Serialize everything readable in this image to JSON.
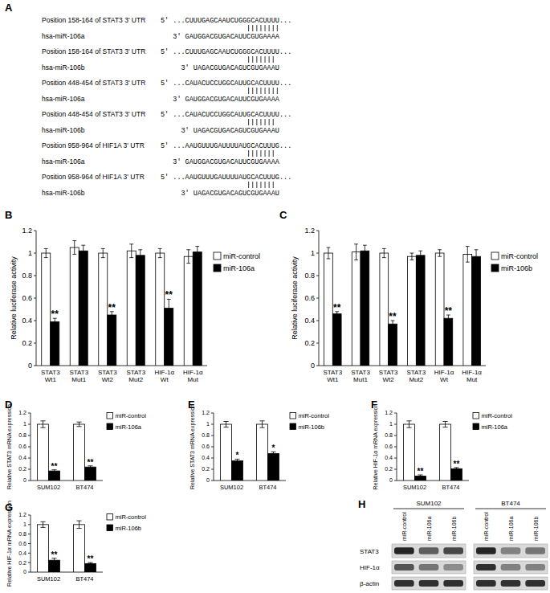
{
  "chart_data": [
    {
      "type": "bar",
      "title": "B",
      "y_label": "Relative luciferase activity",
      "categories": [
        "STAT3 Wt1",
        "STAT3 Mut1",
        "STAT3 Wt2",
        "STAT3 Mut2",
        "HIF-1α Wt",
        "HIF-1α Mut"
      ],
      "series": [
        {
          "name": "miR-control",
          "color": "#ffffff",
          "values": [
            1,
            1.05,
            1,
            1.02,
            1,
            0.97
          ],
          "errors": [
            0.04,
            0.06,
            0.04,
            0.06,
            0.04,
            0.06
          ]
        },
        {
          "name": "miR-106a",
          "color": "#000000",
          "values": [
            0.39,
            1.02,
            0.45,
            0.98,
            0.51,
            1.01
          ],
          "errors": [
            0.03,
            0.05,
            0.03,
            0.05,
            0.08,
            0.05
          ]
        }
      ],
      "annotations": [
        {
          "text": "**",
          "category": "STAT3 Wt1",
          "series": "miR-106a"
        },
        {
          "text": "**",
          "category": "STAT3 Wt2",
          "series": "miR-106a"
        },
        {
          "text": "**",
          "category": "HIF-1α Wt",
          "series": "miR-106a"
        }
      ],
      "ylim": [
        0,
        1.2
      ],
      "yticks": [
        0,
        0.2,
        0.4,
        0.6,
        0.8,
        1,
        1.2
      ],
      "legend": "right",
      "grid": false
    },
    {
      "type": "bar",
      "title": "C",
      "y_label": "Relative luciferase activity",
      "categories": [
        "STAT3 Wt1",
        "STAT3 Mut1",
        "STAT3 Wt2",
        "STAT3 Mut2",
        "HIF-1α Wt",
        "HIF-1α Mut"
      ],
      "series": [
        {
          "name": "miR-control",
          "color": "#ffffff",
          "values": [
            1,
            1.01,
            1,
            0.97,
            1,
            0.99
          ],
          "errors": [
            0.05,
            0.07,
            0.04,
            0.03,
            0.03,
            0.07
          ]
        },
        {
          "name": "miR-106b",
          "color": "#000000",
          "values": [
            0.46,
            1.02,
            0.37,
            0.98,
            0.42,
            0.97
          ],
          "errors": [
            0.02,
            0.05,
            0.03,
            0.04,
            0.03,
            0.06
          ]
        }
      ],
      "annotations": [
        {
          "text": "**",
          "category": "STAT3 Wt1",
          "series": "miR-106b"
        },
        {
          "text": "**",
          "category": "STAT3 Wt2",
          "series": "miR-106b"
        },
        {
          "text": "**",
          "category": "HIF-1α Wt",
          "series": "miR-106b"
        }
      ],
      "ylim": [
        0,
        1.2
      ],
      "yticks": [
        0,
        0.2,
        0.4,
        0.6,
        0.8,
        1,
        1.2
      ],
      "legend": "right",
      "grid": false
    },
    {
      "type": "bar",
      "title": "D",
      "y_label": "Relative STAT3 mRNA expression",
      "categories": [
        "SUM102",
        "BT474"
      ],
      "series": [
        {
          "name": "miR-control",
          "color": "#ffffff",
          "values": [
            1,
            1
          ],
          "errors": [
            0.06,
            0.04
          ]
        },
        {
          "name": "miR-106a",
          "color": "#000000",
          "values": [
            0.17,
            0.24
          ],
          "errors": [
            0.02,
            0.02
          ]
        }
      ],
      "annotations": [
        {
          "text": "**",
          "category": "SUM102",
          "series": "miR-106a"
        },
        {
          "text": "**",
          "category": "BT474",
          "series": "miR-106a"
        }
      ],
      "ylim": [
        0,
        1.2
      ],
      "yticks": [
        0,
        0.2,
        0.4,
        0.6,
        0.8,
        1,
        1.2
      ],
      "legend": "right",
      "grid": false
    },
    {
      "type": "bar",
      "title": "E",
      "y_label": "Relative STAT3 mRNA expression",
      "categories": [
        "SUM102",
        "BT474"
      ],
      "series": [
        {
          "name": "miR-control",
          "color": "#ffffff",
          "values": [
            1,
            1
          ],
          "errors": [
            0.05,
            0.06
          ]
        },
        {
          "name": "miR-106b",
          "color": "#000000",
          "values": [
            0.35,
            0.48
          ],
          "errors": [
            0.03,
            0.03
          ]
        }
      ],
      "annotations": [
        {
          "text": "*",
          "category": "SUM102",
          "series": "miR-106b"
        },
        {
          "text": "*",
          "category": "BT474",
          "series": "miR-106b"
        }
      ],
      "ylim": [
        0,
        1.2
      ],
      "yticks": [
        0,
        0.2,
        0.4,
        0.6,
        0.8,
        1,
        1.2
      ],
      "legend": "right",
      "grid": false
    },
    {
      "type": "bar",
      "title": "F",
      "y_label": "Relative HIF-1α mRNA expression",
      "categories": [
        "SUM102",
        "BT474"
      ],
      "series": [
        {
          "name": "miR-control",
          "color": "#ffffff",
          "values": [
            1,
            1
          ],
          "errors": [
            0.06,
            0.05
          ]
        },
        {
          "name": "miR-106a",
          "color": "#000000",
          "values": [
            0.08,
            0.21
          ],
          "errors": [
            0.02,
            0.02
          ]
        }
      ],
      "annotations": [
        {
          "text": "**",
          "category": "SUM102",
          "series": "miR-106a"
        },
        {
          "text": "**",
          "category": "BT474",
          "series": "miR-106a"
        }
      ],
      "ylim": [
        0,
        1.2
      ],
      "yticks": [
        0,
        0.2,
        0.4,
        0.6,
        0.8,
        1,
        1.2
      ],
      "legend": "right",
      "grid": false
    },
    {
      "type": "bar",
      "title": "G",
      "y_label": "Relative HIF-1α mRNA expression",
      "categories": [
        "SUM102",
        "BT474"
      ],
      "series": [
        {
          "name": "miR-control",
          "color": "#ffffff",
          "values": [
            1,
            1
          ],
          "errors": [
            0.06,
            0.08
          ]
        },
        {
          "name": "miR-106b",
          "color": "#000000",
          "values": [
            0.25,
            0.18
          ],
          "errors": [
            0.04,
            0.02
          ]
        }
      ],
      "annotations": [
        {
          "text": "**",
          "category": "SUM102",
          "series": "miR-106b"
        },
        {
          "text": "**",
          "category": "BT474",
          "series": "miR-106b"
        }
      ],
      "ylim": [
        0,
        1.2
      ],
      "yticks": [
        0,
        0.2,
        0.4,
        0.6,
        0.8,
        1,
        1.2
      ],
      "legend": "right",
      "grid": false
    }
  ],
  "panel_a": {
    "title": "A",
    "alignments": [
      {
        "target": "Position 158-164 of STAT3 3' UTR",
        "target_sequence": "5' ...CUUUGAGCAAUCUGGGCACUUUU...",
        "mirna": "hsa-miR-106a",
        "mirna_sequence": "3' GAUGGACGUGACAUUCGUGAAAA"
      },
      {
        "target": "Position 158-164 of STAT3 3' UTR",
        "target_sequence": "5' ...CUUUGAGCAAUCUGGGCACUUUU...",
        "mirna": "hsa-miR-106b",
        "mirna_sequence": "3' UAGACGUGACAGUCGUGAAAU"
      },
      {
        "target": "Position 448-454 of STAT3 3' UTR",
        "target_sequence": "5' ...CAUACUCCUGGCAUUGCACUUUU...",
        "mirna": "hsa-miR-106a",
        "mirna_sequence": "3' GAUGGACGUGACAUUCGUGAAAA"
      },
      {
        "target": "Position 448-454 of STAT3 3' UTR",
        "target_sequence": "5' ...CAUACUCCUGGCAUUGCACUUUU...",
        "mirna": "hsa-miR-106b",
        "mirna_sequence": "3' UAGACGUGACAGUCGUGAAAU"
      },
      {
        "target": "Position 958-964 of HIF1A 3' UTR",
        "target_sequence": "5' ...AAUGUUUGAUUUUAUGCACUUUG...",
        "mirna": "hsa-miR-106a",
        "mirna_sequence": "3' GAUGGACGUGACAUUCGUGAAAA"
      },
      {
        "target": "Position 958-964 of HIF1A 3' UTR",
        "target_sequence": "5' ...AAUGUUUGAUUUUAUGCACUUUG...",
        "mirna": "hsa-miR-106b",
        "mirna_sequence": "3' UAGACGUGACAGUCGUGAAAU"
      }
    ]
  },
  "panel_h": {
    "title": "H",
    "groups": [
      {
        "label": "SUM102",
        "lanes": [
          "miR-control",
          "miR-106a",
          "miR-106b"
        ]
      },
      {
        "label": "BT474",
        "lanes": [
          "miR-control",
          "miR-106a",
          "miR-106b"
        ]
      }
    ],
    "rows": [
      {
        "label": "STAT3",
        "intensity": [
          0.95,
          0.7,
          0.8,
          0.95,
          0.55,
          0.6
        ]
      },
      {
        "label": "HIF-1α",
        "intensity": [
          0.75,
          0.6,
          0.5,
          0.9,
          0.55,
          0.55
        ]
      },
      {
        "label": "β-actin",
        "intensity": [
          0.9,
          0.9,
          0.9,
          0.9,
          0.9,
          0.9
        ]
      }
    ]
  }
}
